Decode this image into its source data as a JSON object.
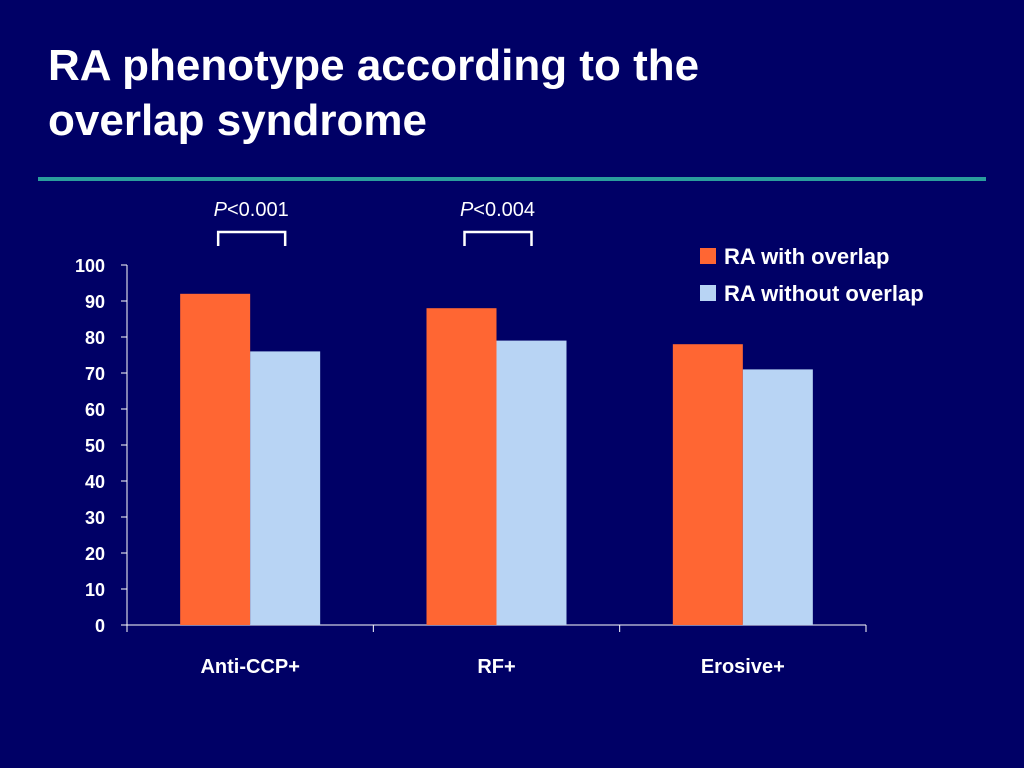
{
  "slide": {
    "title_line1": "RA phenotype according to the",
    "title_line2": "overlap syndrome"
  },
  "colors": {
    "background": "#000066",
    "divider": "#2a9d9d",
    "series_with": "#ff6633",
    "series_without": "#b8d4f4"
  },
  "chart_data": {
    "type": "bar",
    "categories": [
      "Anti-CCP+",
      "RF+",
      "Erosive+"
    ],
    "series": [
      {
        "name": "RA with overlap",
        "values": [
          92,
          88,
          78
        ]
      },
      {
        "name": "RA without overlap",
        "values": [
          76,
          79,
          71
        ]
      }
    ],
    "ylim": [
      0,
      100
    ],
    "yticks": [
      0,
      10,
      20,
      30,
      40,
      50,
      60,
      70,
      80,
      90,
      100
    ],
    "legend_position": "top-right",
    "grid": false,
    "annotations": [
      {
        "category": "Anti-CCP+",
        "label_italic": "P",
        "label_rest": "<0.001"
      },
      {
        "category": "RF+",
        "label_italic": "P",
        "label_rest": "<0.004"
      }
    ]
  }
}
